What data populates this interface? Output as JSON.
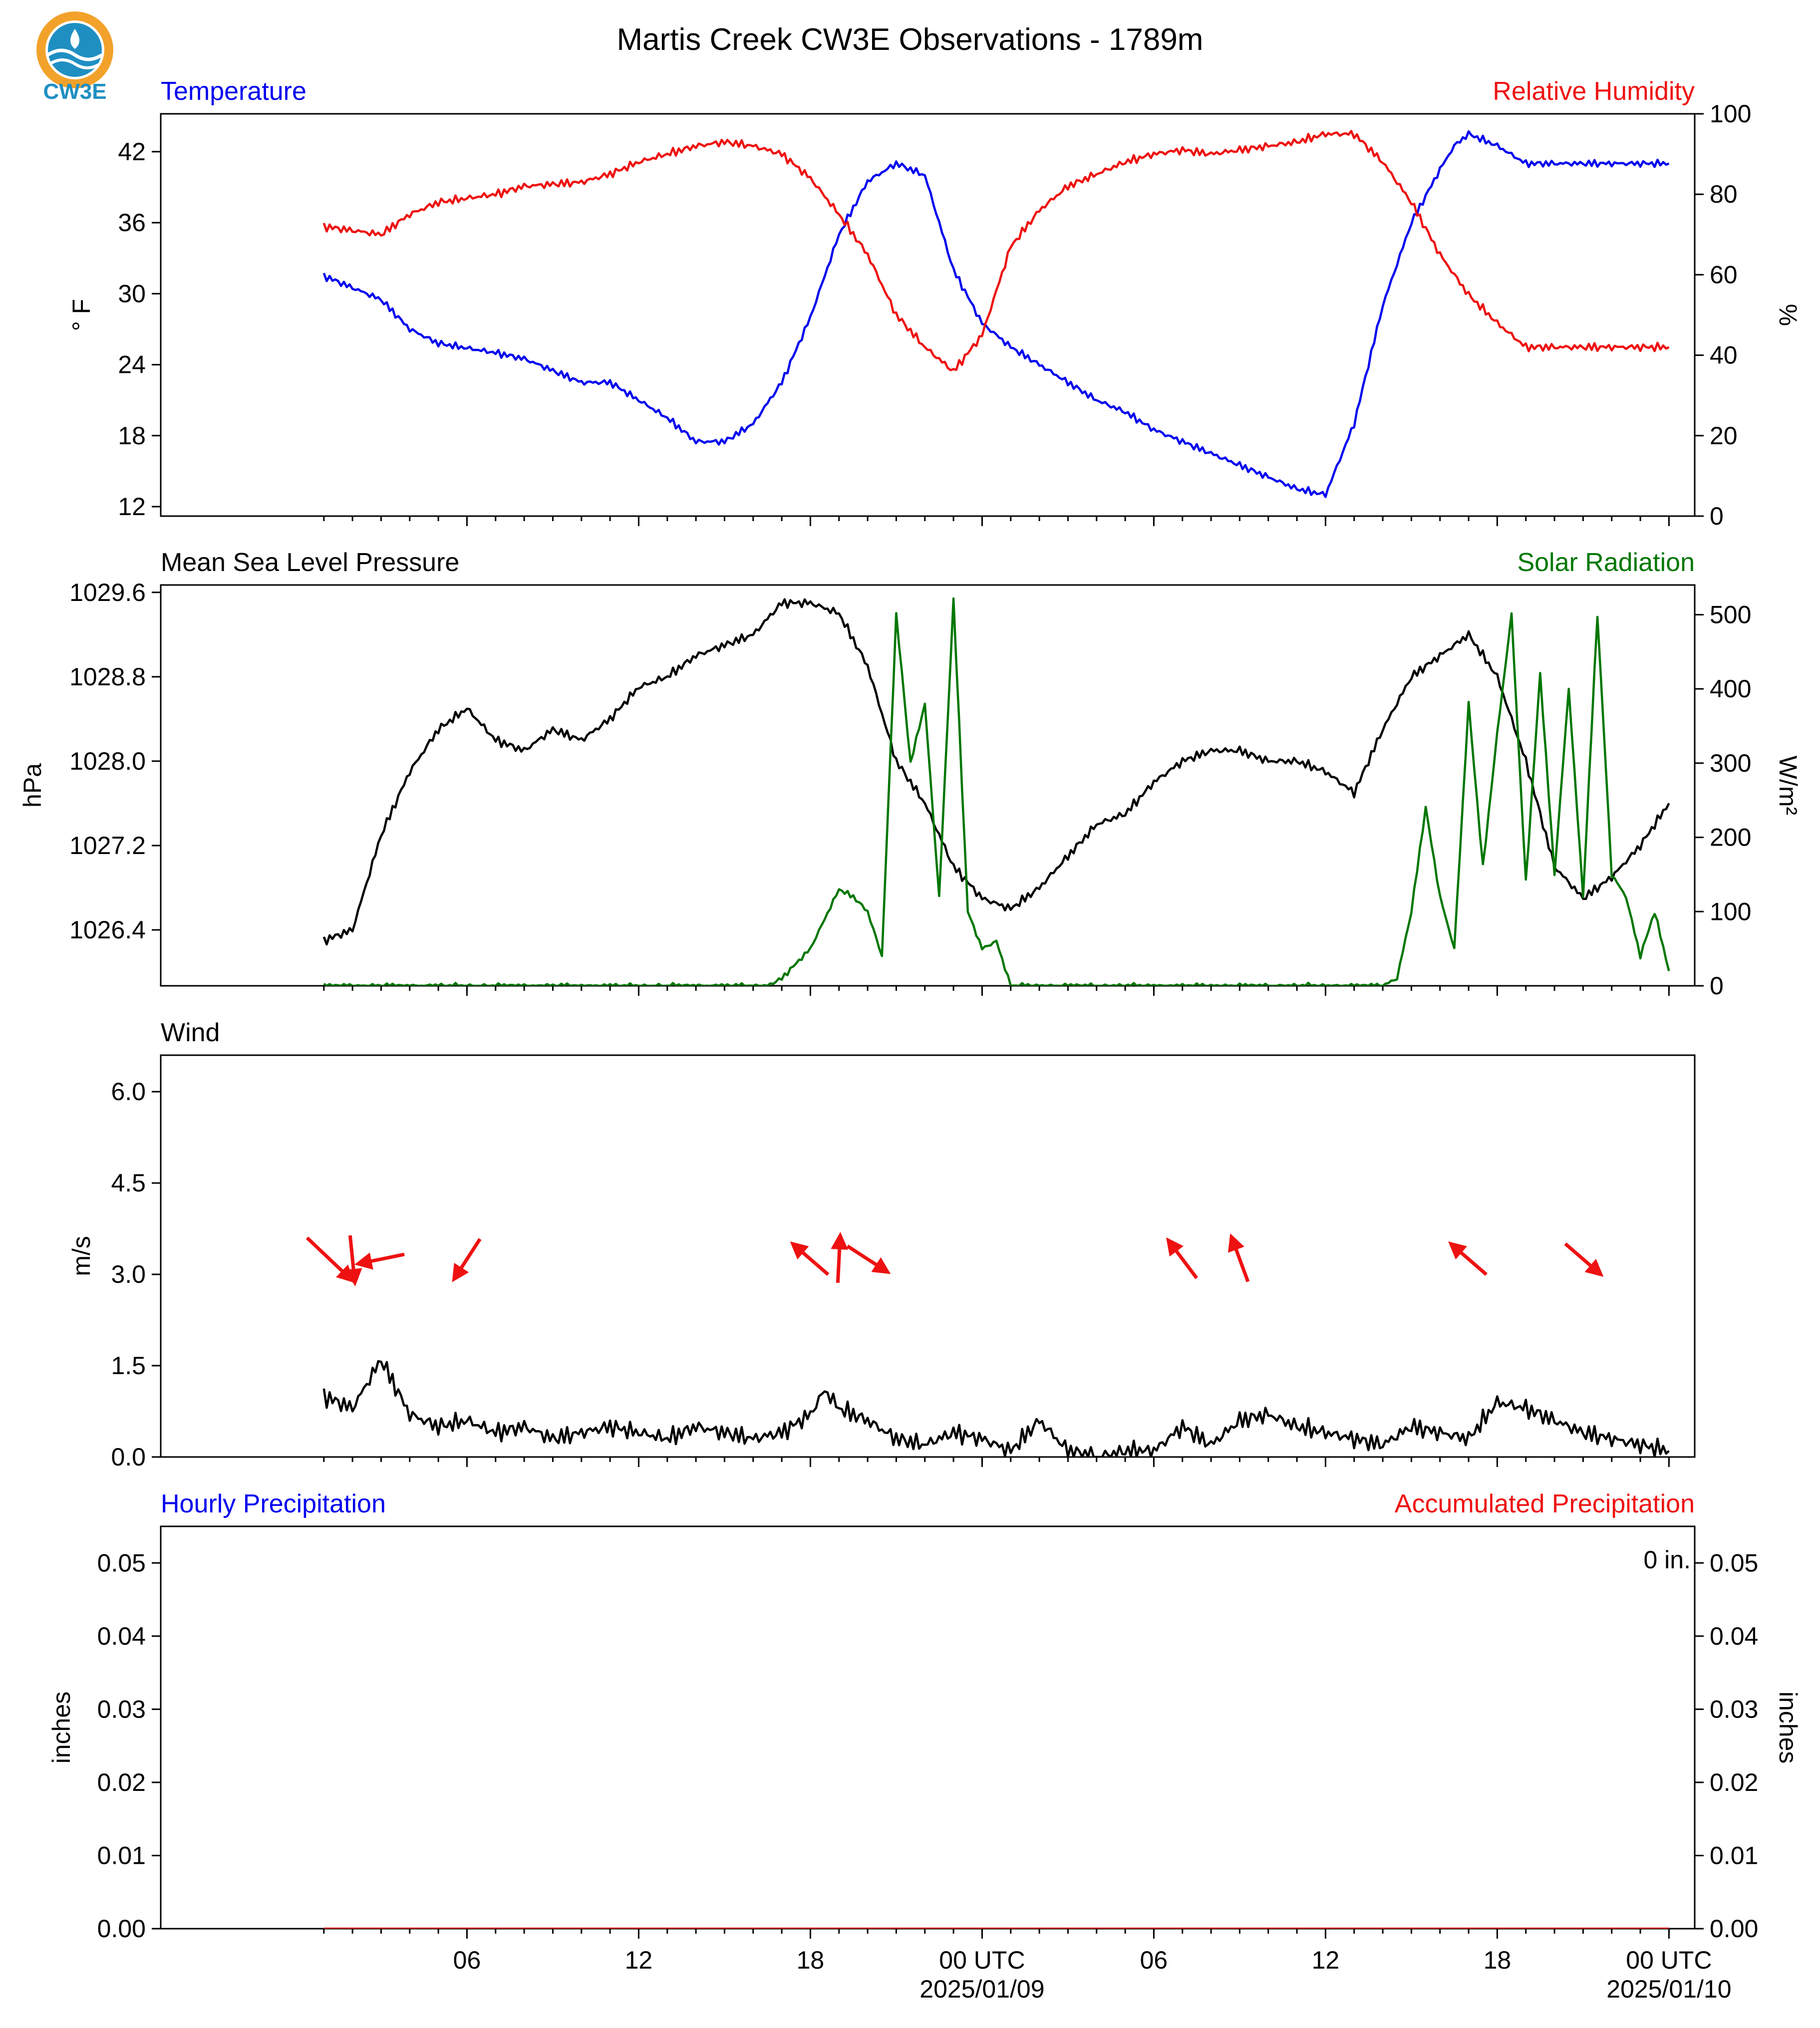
{
  "title": "Martis Creek CW3E Observations - 1789m",
  "logo": {
    "text": "CW3E",
    "color": "#1f8fc2",
    "accent": "#f2a22a"
  },
  "colors": {
    "temperature": "#0000ee",
    "humidity": "#ee1111",
    "pressure": "#000000",
    "solar": "#007700",
    "wind_speed": "#000000",
    "wind_arrows": "#ee1111",
    "hourly_precip": "#0000ee",
    "accum_precip": "#ee1111"
  },
  "time_axis": {
    "hour_range": [
      -5,
      48.6
    ],
    "labels": [
      {
        "hour": 5.7,
        "line1": "06",
        "line2": ""
      },
      {
        "hour": 11.7,
        "line1": "12",
        "line2": ""
      },
      {
        "hour": 17.7,
        "line1": "18",
        "line2": ""
      },
      {
        "hour": 23.7,
        "line1": "00 UTC",
        "line2": "2025/01/09"
      },
      {
        "hour": 29.7,
        "line1": "06",
        "line2": ""
      },
      {
        "hour": 35.7,
        "line1": "12",
        "line2": ""
      },
      {
        "hour": 41.7,
        "line1": "18",
        "line2": ""
      },
      {
        "hour": 47.7,
        "line1": "00 UTC",
        "line2": "2025/01/10"
      }
    ]
  },
  "chart_data": [
    {
      "type": "line",
      "left_title": "Temperature",
      "right_title": "Relative Humidity",
      "ylabel": "° F",
      "y2label": "%",
      "ylim": [
        11.2,
        45.2
      ],
      "y2lim": [
        0,
        100
      ],
      "yticks": [
        "12",
        "18",
        "24",
        "30",
        "36",
        "42"
      ],
      "y2ticks": [
        "0",
        "20",
        "40",
        "60",
        "80",
        "100"
      ],
      "grid": false,
      "series": [
        {
          "axis": "left",
          "hours": [
            0.7,
            2.7,
            3.7,
            4.7,
            6.7,
            7.7,
            9.7,
            10.3,
            10.7,
            11.7,
            12.7,
            13.7,
            14.7,
            15.7,
            16.7,
            17.7,
            18.7,
            19.7,
            20.7,
            21.7,
            22.7,
            23.7,
            24.7,
            25.7,
            26.7,
            27.7,
            28.7,
            29.7,
            30.7,
            31.7,
            32.7,
            33.7,
            34.7,
            35.7,
            36.7,
            37.7,
            38.7,
            39.7,
            40.2,
            40.7,
            41.7,
            42.7,
            43.7,
            44.7,
            45.7,
            46.7,
            47.7
          ],
          "values": [
            31.5,
            29.5,
            27.0,
            25.8,
            25.0,
            24.5,
            22.5,
            22.5,
            22.5,
            21.0,
            19.5,
            17.5,
            17.5,
            19.0,
            22.5,
            28.0,
            35.0,
            39.5,
            41.0,
            40.0,
            32.0,
            27.5,
            25.5,
            24.0,
            22.5,
            21.0,
            20.0,
            18.5,
            17.5,
            16.5,
            15.5,
            14.5,
            13.5,
            13.0,
            19.0,
            29.0,
            36.0,
            40.5,
            42.5,
            43.5,
            42.5,
            41.0,
            41.0,
            41.0,
            41.0,
            41.0,
            41.0
          ]
        },
        {
          "axis": "right",
          "hours": [
            0.7,
            2.7,
            3.7,
            4.7,
            6.7,
            7.7,
            9.7,
            10.7,
            11.7,
            12.7,
            13.7,
            14.7,
            15.7,
            16.7,
            17.7,
            18.7,
            19.7,
            20.7,
            21.7,
            22.7,
            23.7,
            24.7,
            25.7,
            26.7,
            27.7,
            28.7,
            29.7,
            30.7,
            31.7,
            32.7,
            33.7,
            34.7,
            35.7,
            36.7,
            37.7,
            38.7,
            39.7,
            40.7,
            41.7,
            42.7,
            43.7,
            44.7,
            45.7,
            46.7,
            47.7
          ],
          "values": [
            72,
            70,
            75,
            78,
            80,
            82,
            83,
            85,
            88,
            90,
            92,
            93,
            92,
            90,
            84,
            75,
            65,
            50,
            42,
            36,
            45,
            67,
            76,
            82,
            85,
            88,
            90,
            91,
            90,
            91,
            92,
            93,
            95,
            95,
            88,
            78,
            65,
            55,
            48,
            42,
            42,
            42,
            42,
            42,
            42
          ]
        }
      ]
    },
    {
      "type": "line",
      "left_title": "Mean Sea Level Pressure",
      "right_title": "Solar Radiation",
      "ylabel": "hPa",
      "y2label": "W/m²",
      "ylim": [
        1025.87,
        1029.67
      ],
      "y2lim": [
        0,
        540
      ],
      "yticks": [
        "1026.4",
        "1027.2",
        "1028.0",
        "1028.8",
        "1029.6"
      ],
      "y2ticks": [
        "0",
        "100",
        "200",
        "300",
        "400",
        "500"
      ],
      "grid": false,
      "series": [
        {
          "axis": "left",
          "hours": [
            0.7,
            1.7,
            2.7,
            3.7,
            4.7,
            5.7,
            6.7,
            7.7,
            8.7,
            9.7,
            10.7,
            11.7,
            12.7,
            13.7,
            14.7,
            15.7,
            16.7,
            17.7,
            18.7,
            19.7,
            20.7,
            21.7,
            22.7,
            23.7,
            24.7,
            25.7,
            26.7,
            27.7,
            28.7,
            29.7,
            30.7,
            31.7,
            32.7,
            33.7,
            34.7,
            35.7,
            36.7,
            37.7,
            38.7,
            39.7,
            40.7,
            41.7,
            42.7,
            43.7,
            44.7,
            45.7,
            46.7,
            47.7
          ],
          "values": [
            1026.3,
            1026.4,
            1027.3,
            1027.9,
            1028.3,
            1028.5,
            1028.2,
            1028.1,
            1028.3,
            1028.2,
            1028.4,
            1028.7,
            1028.8,
            1029.0,
            1029.1,
            1029.2,
            1029.5,
            1029.5,
            1029.4,
            1028.9,
            1028.0,
            1027.6,
            1027.0,
            1026.7,
            1026.6,
            1026.8,
            1027.1,
            1027.4,
            1027.5,
            1027.8,
            1028.0,
            1028.1,
            1028.1,
            1028.0,
            1028.0,
            1027.9,
            1027.7,
            1028.3,
            1028.8,
            1029.0,
            1029.2,
            1028.8,
            1028.0,
            1027.0,
            1026.7,
            1026.9,
            1027.2,
            1027.6
          ]
        },
        {
          "axis": "right",
          "hours": [
            0.7,
            15.7,
            16.2,
            16.7,
            17.2,
            17.7,
            18.2,
            18.7,
            19.2,
            19.7,
            20.2,
            20.7,
            21.2,
            21.7,
            22.2,
            22.7,
            23.2,
            23.7,
            24.2,
            24.7,
            25.7,
            26.7,
            27.7,
            28.7,
            29.7,
            30.7,
            31.7,
            32.7,
            33.7,
            34.7,
            35.7,
            36.7,
            37.7,
            38.2,
            38.7,
            39.2,
            39.7,
            40.2,
            40.7,
            41.2,
            41.7,
            42.2,
            42.7,
            43.2,
            43.7,
            44.2,
            44.7,
            45.2,
            45.7,
            46.2,
            46.7,
            47.2,
            47.7
          ],
          "values": [
            0,
            0,
            0,
            10,
            30,
            50,
            90,
            130,
            120,
            100,
            40,
            500,
            300,
            380,
            120,
            520,
            100,
            50,
            60,
            0,
            0,
            0,
            0,
            0,
            0,
            0,
            0,
            0,
            0,
            0,
            0,
            0,
            0,
            10,
            100,
            240,
            120,
            50,
            380,
            160,
            340,
            500,
            140,
            420,
            150,
            400,
            120,
            500,
            150,
            120,
            40,
            100,
            20
          ]
        }
      ]
    },
    {
      "type": "line",
      "left_title": "Wind",
      "ylabel": "m/s",
      "ylim": [
        0,
        6.6
      ],
      "yticks": [
        "0.0",
        "1.5",
        "3.0",
        "4.5",
        "6.0"
      ],
      "grid": false,
      "series": [
        {
          "axis": "left",
          "hours": [
            0.7,
            1.7,
            2.7,
            3.7,
            4.7,
            5.7,
            6.7,
            7.7,
            8.7,
            9.7,
            10.7,
            11.7,
            12.7,
            13.7,
            14.7,
            15.7,
            16.7,
            17.7,
            18.2,
            18.7,
            19.7,
            20.7,
            21.7,
            22.7,
            23.7,
            24.7,
            25.7,
            26.7,
            27.7,
            28.7,
            29.7,
            30.7,
            31.7,
            32.7,
            33.7,
            34.7,
            35.7,
            36.7,
            37.7,
            38.7,
            39.7,
            40.7,
            41.7,
            42.7,
            43.7,
            44.7,
            45.7,
            46.7,
            47.7
          ],
          "values": [
            1.0,
            0.8,
            1.6,
            0.7,
            0.5,
            0.6,
            0.4,
            0.5,
            0.3,
            0.4,
            0.5,
            0.4,
            0.3,
            0.5,
            0.4,
            0.3,
            0.4,
            0.7,
            1.1,
            0.8,
            0.6,
            0.3,
            0.2,
            0.4,
            0.3,
            0.1,
            0.6,
            0.1,
            0.0,
            0.1,
            0.1,
            0.5,
            0.2,
            0.6,
            0.7,
            0.5,
            0.4,
            0.3,
            0.2,
            0.5,
            0.4,
            0.3,
            0.9,
            0.8,
            0.6,
            0.4,
            0.3,
            0.2,
            0.1
          ]
        }
      ],
      "wind_arrows": [
        {
          "hour": 0.9,
          "dx": 0.95,
          "dy": -0.9
        },
        {
          "hour": 1.7,
          "dx": 0.1,
          "dy": -1.0
        },
        {
          "hour": 2.7,
          "dx": -0.98,
          "dy": -0.2
        },
        {
          "hour": 5.7,
          "dx": -0.55,
          "dy": -0.85
        },
        {
          "hour": 17.7,
          "dx": -0.75,
          "dy": 0.65
        },
        {
          "hour": 18.7,
          "dx": 0.05,
          "dy": 1.0
        },
        {
          "hour": 19.7,
          "dx": 0.85,
          "dy": -0.55
        },
        {
          "hour": 30.7,
          "dx": -0.6,
          "dy": 0.8
        },
        {
          "hour": 32.7,
          "dx": -0.35,
          "dy": 0.95
        },
        {
          "hour": 40.7,
          "dx": -0.75,
          "dy": 0.65
        },
        {
          "hour": 44.7,
          "dx": 0.75,
          "dy": -0.65
        }
      ]
    },
    {
      "type": "bar",
      "left_title": "Hourly Precipitation",
      "right_title": "Accumulated Precipitation",
      "ylabel": "inches",
      "y2label": "inches",
      "ylim": [
        0,
        0.055
      ],
      "y2lim": [
        0,
        0.055
      ],
      "yticks": [
        "0.00",
        "0.01",
        "0.02",
        "0.03",
        "0.04",
        "0.05"
      ],
      "y2ticks": [
        "0.00",
        "0.01",
        "0.02",
        "0.03",
        "0.04",
        "0.05"
      ],
      "annotation": "0 in.",
      "grid": false,
      "series": [
        {
          "axis": "left",
          "hours": [
            0.7,
            47.7
          ],
          "values": [
            0,
            0
          ]
        }
      ]
    }
  ]
}
